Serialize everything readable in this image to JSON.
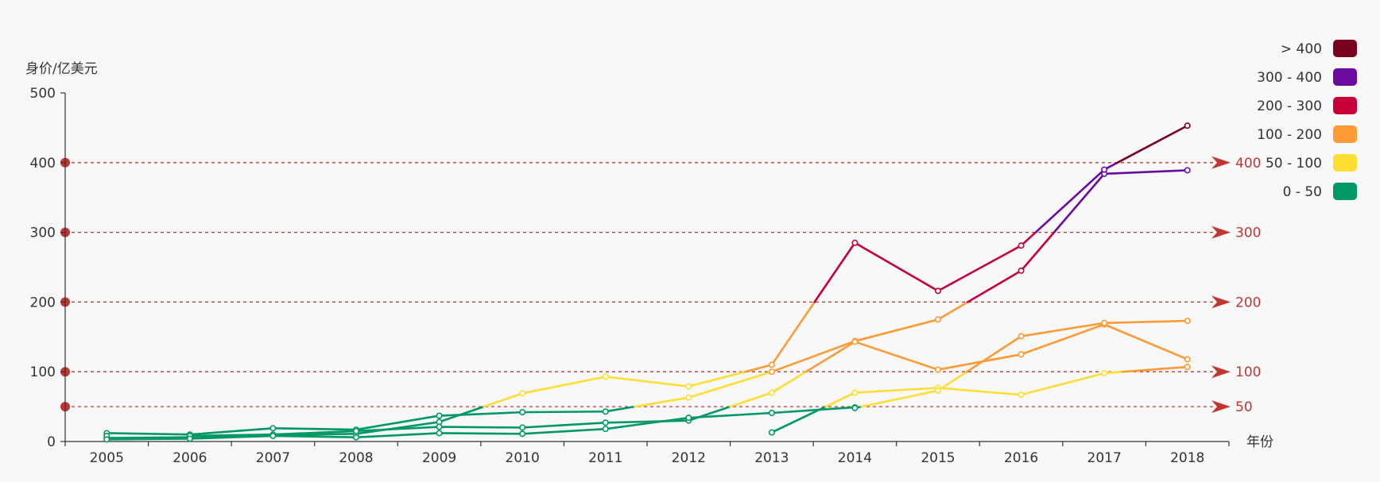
{
  "chart_data": {
    "type": "line",
    "ylabel": "身价/亿美元",
    "xlabel": "年份",
    "categories": [
      "2005",
      "2006",
      "2007",
      "2008",
      "2009",
      "2010",
      "2011",
      "2012",
      "2013",
      "2014",
      "2015",
      "2016",
      "2017",
      "2018"
    ],
    "ylim": [
      0,
      500
    ],
    "y_ticks": [
      0,
      100,
      200,
      300,
      400,
      500
    ],
    "mark_lines": [
      400,
      300,
      200,
      100,
      50
    ],
    "visual_map": [
      {
        "label": "> 400",
        "min": 400,
        "max": null,
        "color": "#7a0020"
      },
      {
        "label": "300 - 400",
        "min": 300,
        "max": 400,
        "color": "#6a0aa0"
      },
      {
        "label": "200 - 300",
        "min": 200,
        "max": 300,
        "color": "#c8003a"
      },
      {
        "label": "100 - 200",
        "min": 100,
        "max": 200,
        "color": "#ff9a35"
      },
      {
        "label": "50 - 100",
        "min": 50,
        "max": 100,
        "color": "#ffde33"
      },
      {
        "label": "0 - 50",
        "min": 0,
        "max": 50,
        "color": "#009966"
      }
    ],
    "series": [
      {
        "values": [
          12,
          10,
          19,
          17,
          37,
          42,
          43,
          63,
          100,
          144,
          175,
          245,
          384,
          389
        ]
      },
      {
        "values": [
          5,
          6,
          9,
          11,
          28,
          69,
          93,
          79,
          110,
          285,
          216,
          281,
          390,
          453
        ]
      },
      {
        "values": [
          8,
          8,
          10,
          15,
          21,
          20,
          27,
          30,
          70,
          143,
          103,
          125,
          168,
          118
        ]
      },
      {
        "values": [
          3,
          4,
          8,
          6,
          12,
          11,
          18,
          34,
          41,
          49,
          null,
          null,
          null,
          null
        ]
      },
      {
        "values": [
          null,
          null,
          null,
          null,
          null,
          null,
          null,
          null,
          13,
          70,
          77,
          67,
          98,
          107
        ]
      },
      {
        "values": [
          null,
          null,
          null,
          null,
          null,
          null,
          null,
          null,
          null,
          48,
          73,
          151,
          170,
          173
        ]
      }
    ]
  }
}
